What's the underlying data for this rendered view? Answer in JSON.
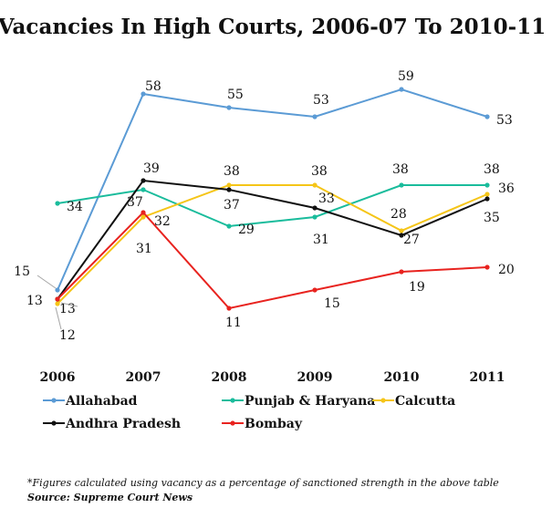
{
  "chart_data": {
    "type": "line",
    "title": "Vacancies In High Courts, 2006-07 To 2010-11",
    "xlabel": "",
    "ylabel": "",
    "categories": [
      "2006",
      "2007",
      "2008",
      "2009",
      "2010",
      "2011"
    ],
    "ylim": [
      0,
      65
    ],
    "grid": false,
    "legend_position": "bottom",
    "series": [
      {
        "name": "Allahabad",
        "color": "#5b9bd5",
        "values": [
          15,
          58,
          55,
          53,
          59,
          53
        ]
      },
      {
        "name": "Punjab & Haryana",
        "color": "#1abc9c",
        "values": [
          34,
          37,
          29,
          31,
          38,
          38
        ]
      },
      {
        "name": "Calcutta",
        "color": "#f5c518",
        "values": [
          12,
          31,
          38,
          38,
          28,
          36
        ]
      },
      {
        "name": "Andhra Pradesh",
        "color": "#111111",
        "values": [
          13,
          39,
          37,
          33,
          27,
          35
        ]
      },
      {
        "name": "Bombay",
        "color": "#e8231f",
        "values": [
          13,
          32,
          11,
          15,
          19,
          20
        ]
      }
    ]
  },
  "footnote": "*Figures calculated using vacancy as a percentage of sanctioned strength in the above table",
  "source": "Source: Supreme Court News"
}
